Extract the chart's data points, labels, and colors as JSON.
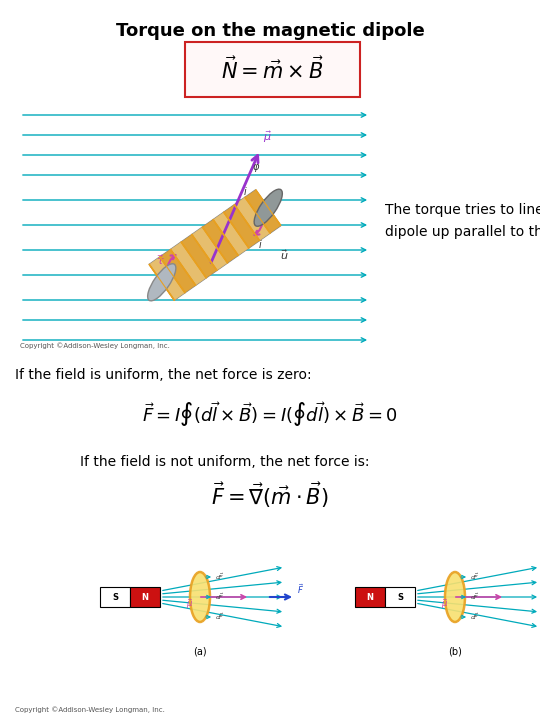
{
  "title": "Torque on the magnetic dipole",
  "eq1": "$\\vec{N} = \\vec{m} \\times \\vec{B}$",
  "text1_line1": "The torque tries to line the",
  "text1_line2": "dipole up parallel to the field",
  "text2": "If the field is uniform, the net force is zero:",
  "eq2": "$\\vec{F} = I \\oint (d\\vec{l} \\times \\vec{B}) = I(\\oint d\\vec{l}) \\times \\vec{B} = 0$",
  "text3": "If the field is not uniform, the net force is:",
  "eq3": "$\\vec{F} = \\vec{\\nabla}(\\vec{m} \\cdot \\vec{B})$",
  "copyright1": "Copyright ©Addison-Wesley Longman, Inc.",
  "copyright2": "Copyright ©Addison-Wesley Longman, Inc.",
  "bg_color": "#ffffff",
  "title_fontsize": 13,
  "eq1_fontsize": 15,
  "eq2_fontsize": 13,
  "eq3_fontsize": 15,
  "text_fontsize": 10,
  "eq_box_color": "#cc2222",
  "cyan": "#00aabb",
  "purple": "#9933cc",
  "pink": "#cc44aa",
  "gold": "#e8a020",
  "gold_fill": "#f0c060",
  "text_color": "#000000",
  "gray_coil": "#b0b8c0",
  "red_mag": "#cc1111"
}
